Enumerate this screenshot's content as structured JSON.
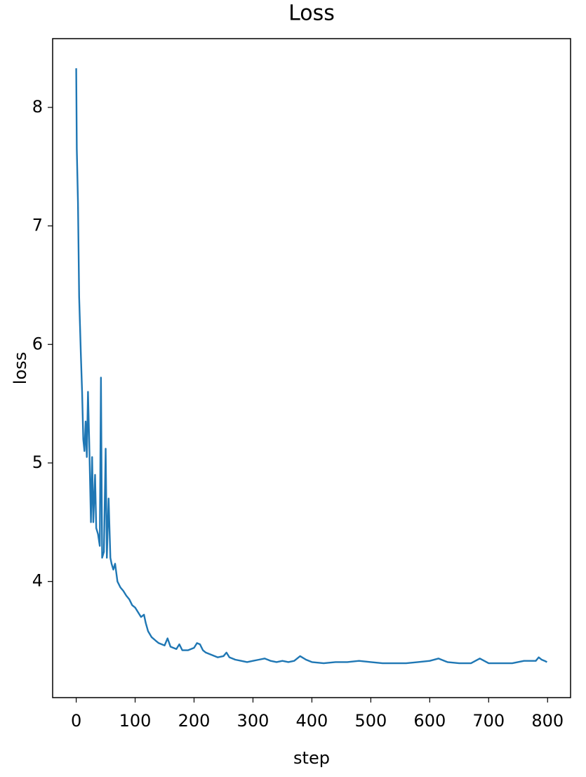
{
  "chart_data": {
    "type": "line",
    "title": "Loss",
    "x_label": "step",
    "y_label": "loss",
    "x": [
      0,
      1,
      3,
      5,
      8,
      10,
      12,
      14,
      16,
      18,
      20,
      22,
      25,
      27,
      29,
      32,
      34,
      37,
      40,
      42,
      44,
      47,
      50,
      52,
      55,
      58,
      60,
      63,
      66,
      70,
      75,
      80,
      85,
      90,
      95,
      100,
      105,
      110,
      115,
      118,
      122,
      128,
      135,
      140,
      150,
      155,
      160,
      170,
      175,
      180,
      190,
      200,
      205,
      210,
      215,
      220,
      230,
      240,
      250,
      255,
      260,
      270,
      280,
      290,
      300,
      310,
      320,
      330,
      340,
      350,
      360,
      370,
      380,
      390,
      400,
      420,
      440,
      460,
      480,
      500,
      520,
      540,
      560,
      580,
      600,
      615,
      630,
      650,
      670,
      685,
      700,
      720,
      740,
      760,
      780,
      785,
      790,
      795,
      799
    ],
    "series": [
      {
        "name": "loss",
        "color": "#1f77b4",
        "values": [
          8.33,
          7.65,
          7.2,
          6.4,
          5.9,
          5.6,
          5.2,
          5.1,
          5.35,
          5.05,
          5.6,
          5.2,
          4.5,
          5.05,
          4.5,
          4.9,
          4.45,
          4.4,
          4.3,
          5.72,
          4.2,
          4.25,
          5.12,
          4.2,
          4.7,
          4.2,
          4.15,
          4.1,
          4.15,
          4.0,
          3.95,
          3.92,
          3.88,
          3.85,
          3.8,
          3.78,
          3.74,
          3.7,
          3.72,
          3.65,
          3.58,
          3.53,
          3.5,
          3.48,
          3.46,
          3.52,
          3.45,
          3.43,
          3.47,
          3.42,
          3.42,
          3.44,
          3.48,
          3.47,
          3.42,
          3.4,
          3.38,
          3.36,
          3.37,
          3.4,
          3.36,
          3.34,
          3.33,
          3.32,
          3.33,
          3.34,
          3.35,
          3.33,
          3.32,
          3.33,
          3.32,
          3.33,
          3.37,
          3.34,
          3.32,
          3.31,
          3.32,
          3.32,
          3.33,
          3.32,
          3.31,
          3.31,
          3.31,
          3.32,
          3.33,
          3.35,
          3.32,
          3.31,
          3.31,
          3.35,
          3.31,
          3.31,
          3.31,
          3.33,
          3.33,
          3.36,
          3.34,
          3.33,
          3.32
        ]
      }
    ],
    "xlim": [
      -40,
      839
    ],
    "xticks": [
      0,
      100,
      200,
      300,
      400,
      500,
      600,
      700,
      800
    ],
    "ylim": [
      3.02,
      8.58
    ],
    "yticks": [
      4,
      5,
      6,
      7,
      8
    ],
    "grid": false
  }
}
